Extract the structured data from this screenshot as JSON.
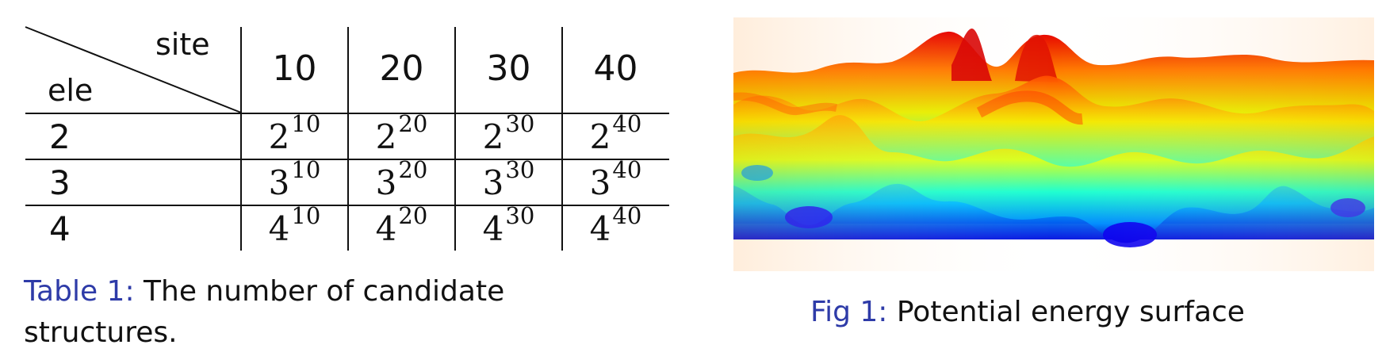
{
  "table": {
    "corner_top": "site",
    "corner_bottom": "ele",
    "columns": [
      "10",
      "20",
      "30",
      "40"
    ],
    "rows": [
      {
        "label": "2",
        "cells": [
          {
            "base": "2",
            "exp": "10"
          },
          {
            "base": "2",
            "exp": "20"
          },
          {
            "base": "2",
            "exp": "30"
          },
          {
            "base": "2",
            "exp": "40"
          }
        ]
      },
      {
        "label": "3",
        "cells": [
          {
            "base": "3",
            "exp": "10"
          },
          {
            "base": "3",
            "exp": "20"
          },
          {
            "base": "3",
            "exp": "30"
          },
          {
            "base": "3",
            "exp": "40"
          }
        ]
      },
      {
        "label": "4",
        "cells": [
          {
            "base": "4",
            "exp": "10"
          },
          {
            "base": "4",
            "exp": "20"
          },
          {
            "base": "4",
            "exp": "30"
          },
          {
            "base": "4",
            "exp": "40"
          }
        ]
      }
    ],
    "caption_label": "Table 1:",
    "caption_text": "The number of candidate structures."
  },
  "figure": {
    "caption_label": "Fig 1:",
    "caption_text": "Potential energy surface",
    "image": "3D potential energy surface rendered with a jet colormap (blue low to red high)"
  },
  "colors": {
    "caption_label": "#2e3ba8",
    "text": "#111111"
  }
}
